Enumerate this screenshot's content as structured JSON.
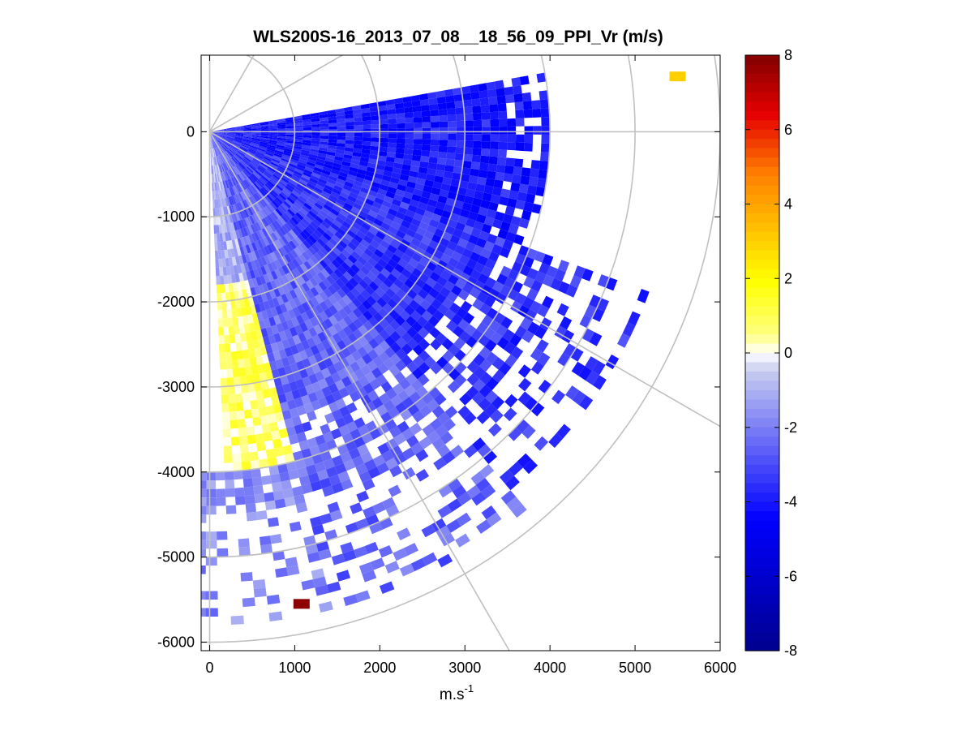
{
  "chart_data": {
    "type": "heatmap",
    "title": "WLS200S-16_2013_07_08__18_56_09_PPI_Vr (m/s)",
    "xlabel_base": "m.s",
    "xlabel_exp": "-1",
    "ylabel": "",
    "xlim": [
      -100,
      6000
    ],
    "ylim": [
      -6100,
      900
    ],
    "x_ticks": [
      0,
      1000,
      2000,
      3000,
      4000,
      5000,
      6000
    ],
    "y_ticks": [
      0,
      -1000,
      -2000,
      -3000,
      -4000,
      -5000,
      -6000
    ],
    "colorbar": {
      "range": [
        -8,
        8
      ],
      "ticks": [
        8,
        6,
        4,
        2,
        0,
        -2,
        -4,
        -6,
        -8
      ],
      "colormap": "blue-white-yellow-red"
    },
    "polar_grid": {
      "range_rings": [
        1000,
        2000,
        3000,
        4000,
        5000,
        6000
      ],
      "radial_lines_deg": [
        60,
        30,
        0,
        -30,
        -60
      ],
      "grid_color": "#c0c0c0"
    },
    "scan": {
      "azimuth_min_deg": -92,
      "azimuth_max_deg": 10,
      "range_min": 0,
      "range_max": 6000
    },
    "velocity_sectors": [
      {
        "az_from_deg": -20,
        "az_to_deg": 10,
        "range_from": 0,
        "range_to": 4000,
        "velocity": -4.0
      },
      {
        "az_from_deg": -50,
        "az_to_deg": -20,
        "range_from": 0,
        "range_to": 5500,
        "velocity": -3.5
      },
      {
        "az_from_deg": -75,
        "az_to_deg": -50,
        "range_from": 0,
        "range_to": 5800,
        "velocity": -2.5
      },
      {
        "az_from_deg": -88,
        "az_to_deg": -75,
        "range_from": 1800,
        "range_to": 4000,
        "velocity": 0.8
      },
      {
        "az_from_deg": -88,
        "az_to_deg": -75,
        "range_from": 0,
        "range_to": 1800,
        "velocity": -1.0
      },
      {
        "az_from_deg": -92,
        "az_to_deg": -75,
        "range_from": 4000,
        "range_to": 5800,
        "velocity": -1.8
      }
    ],
    "notable_cells": [
      {
        "x": 1080,
        "y": -5550,
        "velocity": 7.8
      },
      {
        "x": 5500,
        "y": 650,
        "velocity": 3.0
      }
    ],
    "colors": {
      "neg_max": "#00008f",
      "neg_mid": "#0000ff",
      "near_zero": "#ffffff",
      "pos_low": "#ffff00",
      "pos_mid": "#ff8000",
      "pos_max": "#800000"
    }
  }
}
